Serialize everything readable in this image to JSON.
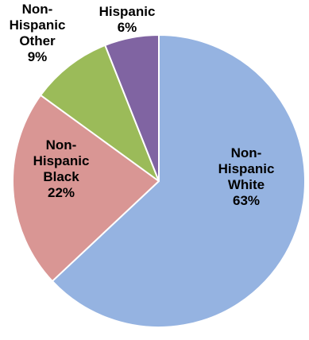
{
  "chart_data": {
    "type": "pie",
    "slices": [
      {
        "lines": [
          "Non-",
          "Hispanic",
          "White",
          "63%"
        ],
        "value": 63,
        "color": "#95b3e1"
      },
      {
        "lines": [
          "Non-",
          "Hispanic",
          "Black",
          "22%"
        ],
        "value": 22,
        "color": "#d99694"
      },
      {
        "lines": [
          "Non-",
          "Hispanic",
          "Other",
          "9%"
        ],
        "value": 9,
        "color": "#9bbb59"
      },
      {
        "lines": [
          "Hispanic",
          "6%"
        ],
        "value": 6,
        "color": "#8064a2"
      }
    ]
  }
}
